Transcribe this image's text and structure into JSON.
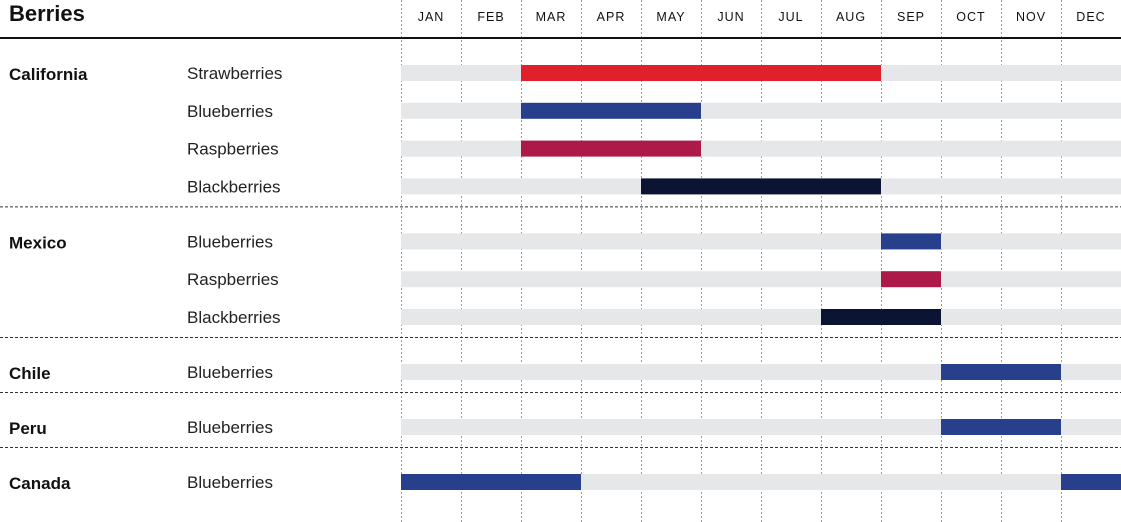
{
  "chart_data": {
    "type": "gantt",
    "title": "Berries",
    "months": [
      "JAN",
      "FEB",
      "MAR",
      "APR",
      "MAY",
      "JUN",
      "JUL",
      "AUG",
      "SEP",
      "OCT",
      "NOV",
      "DEC"
    ],
    "colors": {
      "track": "#e6e7e9",
      "Strawberries": "#e0202a",
      "Blueberries": "#283f8c",
      "Raspberries": "#ad1a49",
      "Blackberries": "#0c1433"
    },
    "regions": [
      {
        "name": "California",
        "rows": [
          {
            "berry": "Strawberries",
            "start_month": 3,
            "end_month": 8
          },
          {
            "berry": "Blueberries",
            "start_month": 3,
            "end_month": 5
          },
          {
            "berry": "Raspberries",
            "start_month": 3,
            "end_month": 5
          },
          {
            "berry": "Blackberries",
            "start_month": 5,
            "end_month": 8
          }
        ]
      },
      {
        "name": "Mexico",
        "rows": [
          {
            "berry": "Blueberries",
            "start_month": 9,
            "end_month": 9
          },
          {
            "berry": "Raspberries",
            "start_month": 9,
            "end_month": 9
          },
          {
            "berry": "Blackberries",
            "start_month": 8,
            "end_month": 9
          }
        ]
      },
      {
        "name": "Chile",
        "rows": [
          {
            "berry": "Blueberries",
            "start_month": 10,
            "end_month": 11
          }
        ]
      },
      {
        "name": "Peru",
        "rows": [
          {
            "berry": "Blueberries",
            "start_month": 10,
            "end_month": 11
          }
        ]
      },
      {
        "name": "Canada",
        "rows": [
          {
            "berry": "Blueberries",
            "start_month": 1,
            "end_month": 3
          },
          {
            "berry": "Blueberries",
            "start_month": 12,
            "end_month": 12,
            "same_row": true
          }
        ]
      }
    ]
  }
}
